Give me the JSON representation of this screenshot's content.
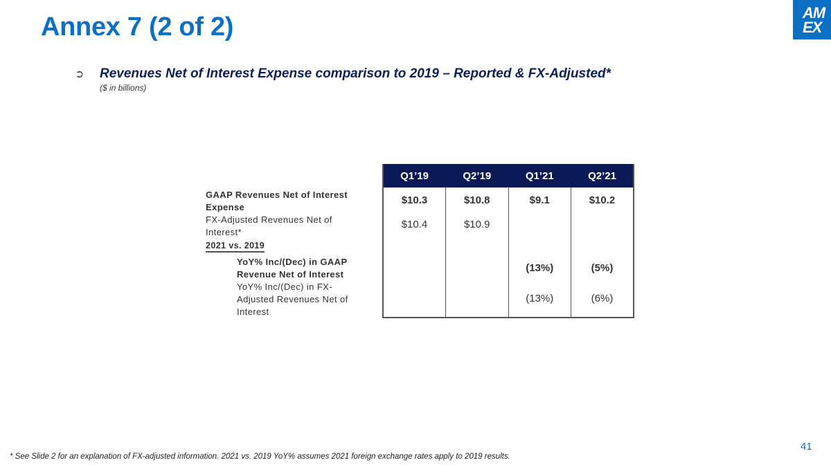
{
  "slide": {
    "title": "Annex 7 (2 of 2)",
    "subtitle": "Revenues Net of Interest Expense comparison to 2019 – Reported & FX-Adjusted*",
    "units": "($ in billions)",
    "bullet": "➲",
    "page_number": "41",
    "footnote": "* See Slide 2 for an explanation of FX-adjusted information. 2021 vs. 2019 YoY% assumes 2021 foreign exchange rates apply to 2019 results."
  },
  "logo": {
    "line1": "AM",
    "line2": "EX"
  },
  "labels": {
    "gaap_revenues": "GAAP Revenues Net of Interest Expense",
    "fx_revenues": "FX-Adjusted Revenues Net of Interest*",
    "section": "2021 vs. 2019",
    "yoy_gaap": "YoY% Inc/(Dec) in GAAP Revenue Net of Interest",
    "yoy_fx": "YoY% Inc/(Dec) in FX-Adjusted Revenues Net of Interest"
  },
  "table": {
    "columns": [
      "Q1’19",
      "Q2’19",
      "Q1’21",
      "Q2’21"
    ],
    "gaap_revenues": [
      "$10.3",
      "$10.8",
      "$9.1",
      "$10.2"
    ],
    "fx_revenues": [
      "$10.4",
      "$10.9",
      "",
      ""
    ],
    "yoy_gaap": [
      "",
      "",
      "(13%)",
      "(5%)"
    ],
    "yoy_fx": [
      "",
      "",
      "(13%)",
      "(6%)"
    ]
  },
  "colors": {
    "brand_blue": "#0b6fc3",
    "header_navy": "#0a1a57",
    "subtitle_navy": "#0b1f5c"
  }
}
